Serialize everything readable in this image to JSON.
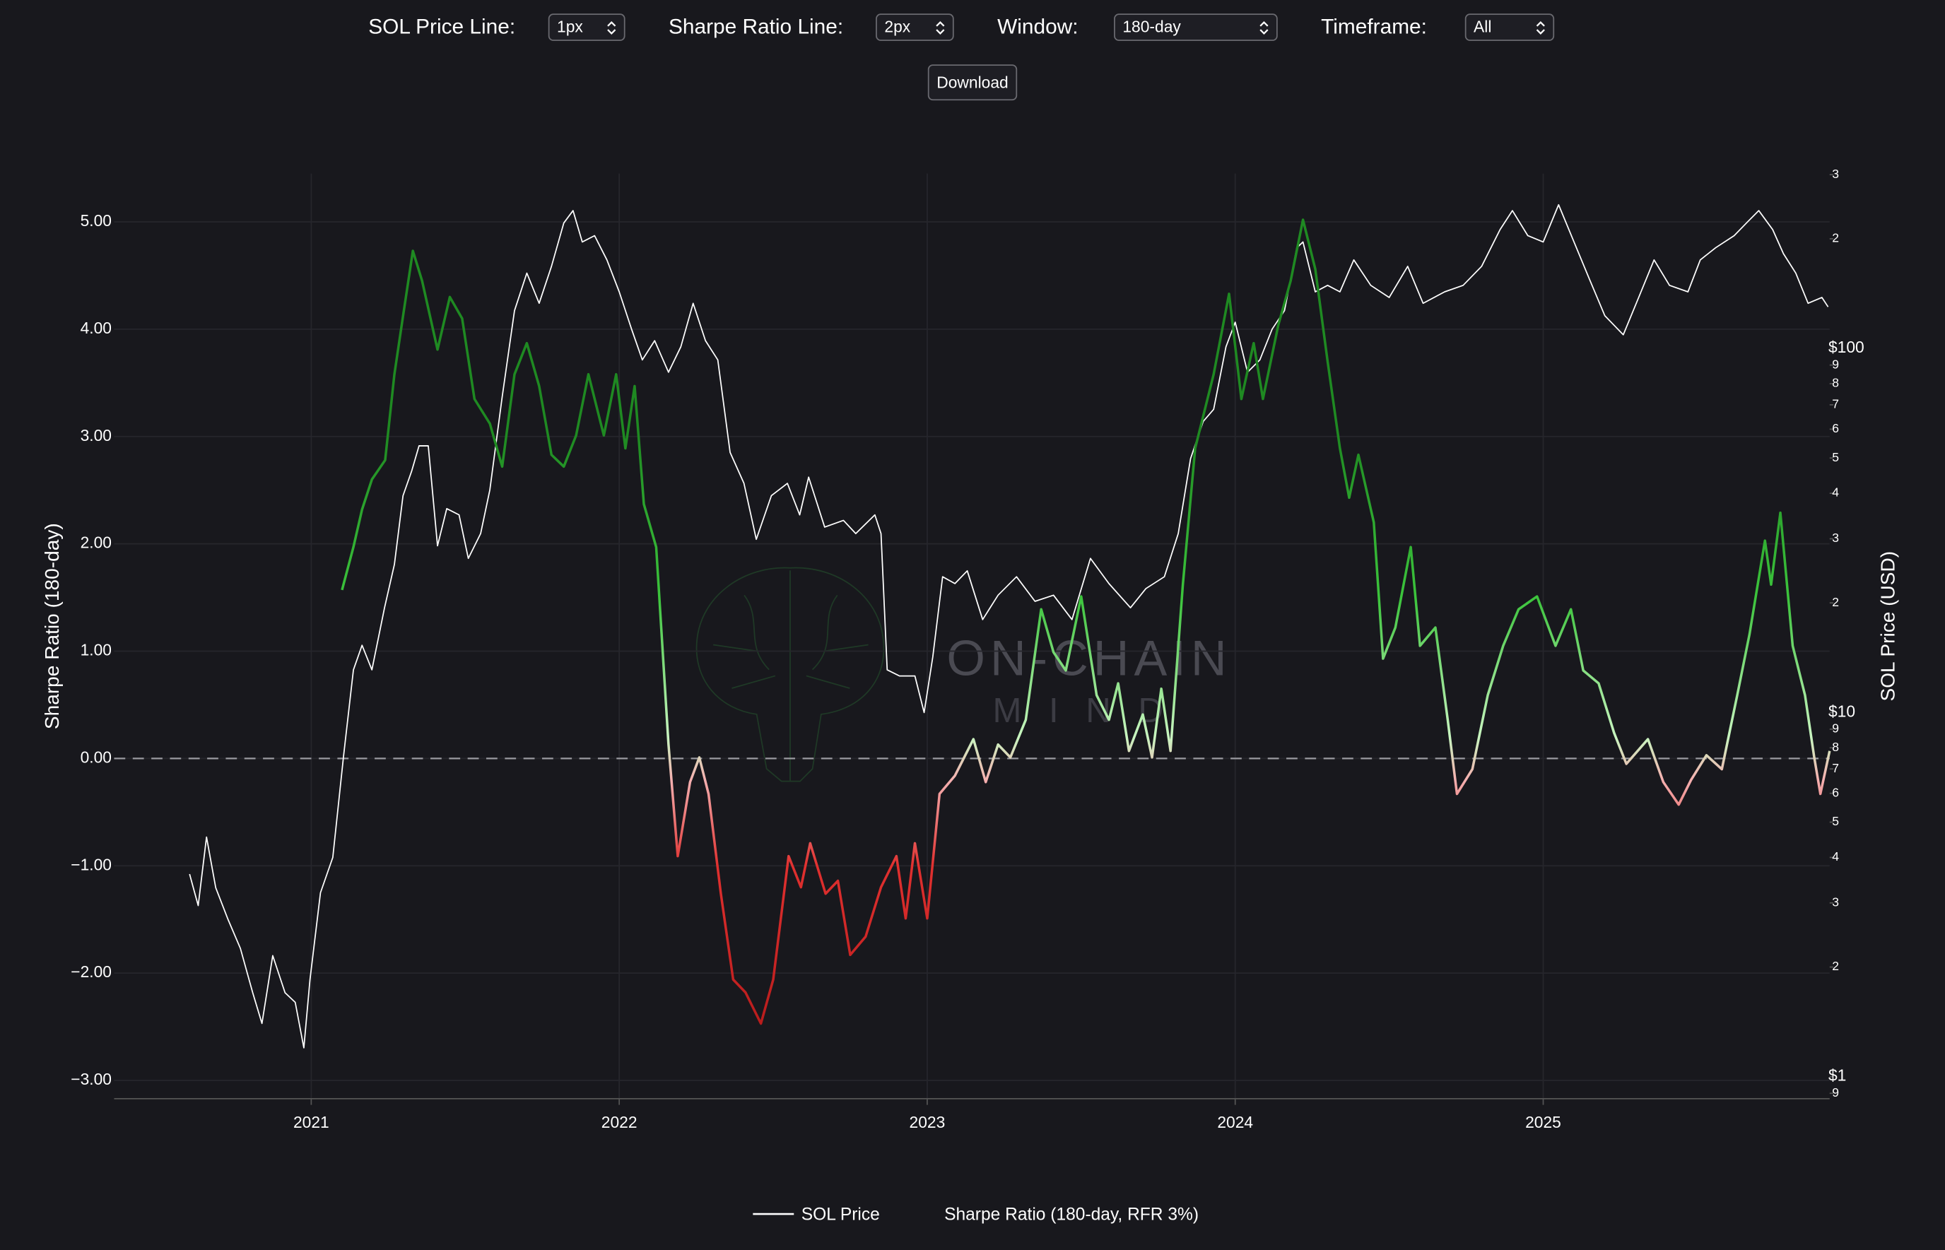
{
  "controls": [
    {
      "label": "SOL Price Line:",
      "value": "1px"
    },
    {
      "label": "Sharpe Ratio Line:",
      "value": "2px"
    },
    {
      "label": "Window:",
      "value": "180-day"
    },
    {
      "label": "Timeframe:",
      "value": "All"
    }
  ],
  "button": "Download",
  "chart_data": {
    "type": "line",
    "watermark": [
      "ON-CHAIN",
      "MIND"
    ],
    "ylabel": "Sharpe Ratio (180-day)",
    "y2label": "SOL Price (USD)",
    "xlim": [
      2020.36,
      2025.93
    ],
    "xticks": [
      2021,
      2022,
      2023,
      2024,
      2025
    ],
    "ylim": [
      -3.17,
      5.45
    ],
    "yticks": [
      {
        "value": -3,
        "label": "−3.00"
      },
      {
        "value": -2,
        "label": "−2.00"
      },
      {
        "value": -1,
        "label": "−1.00"
      },
      {
        "value": 0,
        "label": "0.00"
      },
      {
        "value": 1,
        "label": "1.00"
      },
      {
        "value": 2,
        "label": "2.00"
      },
      {
        "value": 3,
        "label": "3.00"
      },
      {
        "value": 4,
        "label": "4.00"
      },
      {
        "value": 5,
        "label": "5.00"
      }
    ],
    "y2lim": [
      0.87,
      302
    ],
    "y2log": true,
    "y2ticks": [
      {
        "value": 300,
        "label": "3"
      },
      {
        "value": 200,
        "label": "2"
      },
      {
        "value": 100,
        "label": "$100"
      },
      {
        "value": 90,
        "label": "9"
      },
      {
        "value": 80,
        "label": "8"
      },
      {
        "value": 70,
        "label": "7"
      },
      {
        "value": 60,
        "label": "6"
      },
      {
        "value": 50,
        "label": "5"
      },
      {
        "value": 40,
        "label": "4"
      },
      {
        "value": 30,
        "label": "3"
      },
      {
        "value": 20,
        "label": "2"
      },
      {
        "value": 10,
        "label": "$10"
      },
      9,
      8,
      7,
      6,
      5,
      4,
      3,
      2,
      {
        "value": 1,
        "label": "$1"
      },
      {
        "value": 0.9,
        "label": "9"
      }
    ],
    "grid": true,
    "hline": 0,
    "legend": "bottom",
    "series": [
      {
        "name": "SOL Price",
        "color": "#ffffff",
        "axis": "y2",
        "x": [
          2020.605,
          2020.633,
          2020.66,
          2020.69,
          2020.73,
          2020.77,
          2020.81,
          2020.84,
          2020.875,
          2020.915,
          2020.948,
          2020.976,
          2020.996,
          2021.03,
          2021.07,
          2021.105,
          2021.137,
          2021.165,
          2021.197,
          2021.238,
          2021.27,
          2021.298,
          2021.326,
          2021.35,
          2021.38,
          2021.41,
          2021.44,
          2021.48,
          2021.51,
          2021.55,
          2021.58,
          2021.62,
          2021.66,
          2021.7,
          2021.74,
          2021.78,
          2021.82,
          2021.85,
          2021.88,
          2021.92,
          2021.96,
          2022.0,
          2022.04,
          2022.075,
          2022.115,
          2022.16,
          2022.2,
          2022.24,
          2022.28,
          2022.32,
          2022.36,
          2022.405,
          2022.445,
          2022.494,
          2022.546,
          2022.586,
          2022.615,
          2022.667,
          2022.728,
          2022.768,
          2022.83,
          2022.85,
          2022.87,
          2022.91,
          2022.96,
          2022.99,
          2023.018,
          2023.05,
          2023.09,
          2023.13,
          2023.18,
          2023.23,
          2023.29,
          2023.35,
          2023.41,
          2023.47,
          2023.53,
          2023.59,
          2023.66,
          2023.71,
          2023.77,
          2023.815,
          2023.855,
          2023.896,
          2023.93,
          2023.97,
          2024.0,
          2024.04,
          2024.08,
          2024.12,
          2024.16,
          2024.2,
          2024.22,
          2024.26,
          2024.3,
          2024.34,
          2024.385,
          2024.44,
          2024.5,
          2024.56,
          2024.61,
          2024.68,
          2024.74,
          2024.8,
          2024.86,
          2024.9,
          2024.95,
          2025.0,
          2025.05,
          2025.1,
          2025.15,
          2025.2,
          2025.26,
          2025.31,
          2025.36,
          2025.41,
          2025.47,
          2025.51,
          2025.56,
          2025.62,
          2025.66,
          2025.7,
          2025.745,
          2025.78,
          2025.82,
          2025.86,
          2025.905,
          2025.925
        ],
        "values": [
          3.6,
          2.95,
          4.55,
          3.3,
          2.7,
          2.25,
          1.7,
          1.4,
          2.15,
          1.7,
          1.6,
          1.2,
          1.85,
          3.2,
          4.0,
          7.6,
          13.1,
          15.3,
          13.1,
          19.4,
          25.5,
          39.4,
          46,
          54,
          54,
          28.7,
          36.3,
          34.9,
          26.5,
          31,
          40.9,
          73.6,
          127,
          161,
          133,
          168,
          221,
          239,
          196,
          204,
          175,
          143,
          113,
          93,
          105,
          86,
          101,
          133,
          105,
          93,
          51.8,
          42.6,
          29.9,
          39.4,
          42.6,
          34.9,
          44.3,
          32.3,
          33.7,
          31,
          34.9,
          31,
          13.1,
          12.6,
          12.6,
          10,
          14.2,
          23.6,
          22.6,
          24.5,
          18,
          21,
          23.6,
          20.2,
          21,
          18,
          26.5,
          22.6,
          19.4,
          21.9,
          23.6,
          31,
          49.8,
          63,
          68,
          101,
          118,
          86,
          93,
          113,
          127,
          189,
          196,
          143,
          149,
          143,
          175,
          149,
          138,
          168,
          133,
          143,
          149,
          168,
          212,
          239,
          204,
          196,
          248,
          196,
          155,
          123,
          109,
          138,
          175,
          149,
          143,
          175,
          189,
          204,
          221,
          239,
          212,
          182,
          161,
          133,
          138,
          130
        ]
      },
      {
        "name": "Sharpe Ratio (180-day, RFR 3%)",
        "axis": "y",
        "color_stops": [
          {
            "value": 3,
            "color": "#1f8a22"
          },
          {
            "value": 1.5,
            "color": "#3cc43c"
          },
          {
            "value": 0.2,
            "color": "#c8f5c0"
          },
          {
            "value": -0.2,
            "color": "#f5b0b0"
          },
          {
            "value": -1,
            "color": "#e0302f"
          },
          {
            "value": -2.5,
            "color": "#b81c1c"
          }
        ],
        "x": [
          2021.1,
          2021.137,
          2021.165,
          2021.197,
          2021.24,
          2021.27,
          2021.3,
          2021.33,
          2021.36,
          2021.41,
          2021.45,
          2021.49,
          2021.53,
          2021.58,
          2021.62,
          2021.66,
          2021.7,
          2021.74,
          2021.78,
          2021.82,
          2021.86,
          2021.9,
          2021.95,
          2021.99,
          2022.02,
          2022.05,
          2022.08,
          2022.12,
          2022.16,
          2022.19,
          2022.23,
          2022.26,
          2022.29,
          2022.33,
          2022.37,
          2022.41,
          2022.46,
          2022.5,
          2022.55,
          2022.59,
          2022.62,
          2022.67,
          2022.71,
          2022.75,
          2022.8,
          2022.85,
          2022.9,
          2022.93,
          2022.96,
          2023.0,
          2023.04,
          2023.09,
          2023.15,
          2023.19,
          2023.23,
          2023.27,
          2023.32,
          2023.37,
          2023.41,
          2023.45,
          2023.5,
          2023.55,
          2023.59,
          2023.62,
          2023.655,
          2023.7,
          2023.73,
          2023.76,
          2023.79,
          2023.83,
          2023.87,
          2023.93,
          2023.98,
          2024.02,
          2024.06,
          2024.09,
          2024.14,
          2024.18,
          2024.22,
          2024.26,
          2024.3,
          2024.34,
          2024.37,
          2024.4,
          2024.45,
          2024.48,
          2024.52,
          2024.57,
          2024.6,
          2024.65,
          2024.69,
          2024.72,
          2024.77,
          2024.82,
          2024.87,
          2024.92,
          2024.98,
          2025.01,
          2025.04,
          2025.09,
          2025.13,
          2025.18,
          2025.23,
          2025.27,
          2025.34,
          2025.39,
          2025.44,
          2025.48,
          2025.53,
          2025.58,
          2025.63,
          2025.67,
          2025.72,
          2025.74,
          2025.77,
          2025.81,
          2025.85,
          2025.88,
          2025.9,
          2025.93
        ],
        "values": [
          1.57,
          1.97,
          2.32,
          2.6,
          2.78,
          3.58,
          4.16,
          4.73,
          4.45,
          3.81,
          4.3,
          4.1,
          3.35,
          3.12,
          2.72,
          3.58,
          3.87,
          3.47,
          2.83,
          2.72,
          3.01,
          3.58,
          3.01,
          3.58,
          2.89,
          3.47,
          2.37,
          1.97,
          0.13,
          -0.91,
          -0.22,
          0.01,
          -0.33,
          -1.26,
          -2.06,
          -2.18,
          -2.47,
          -2.06,
          -0.91,
          -1.2,
          -0.79,
          -1.26,
          -1.14,
          -1.83,
          -1.66,
          -1.2,
          -0.91,
          -1.49,
          -0.79,
          -1.49,
          -0.33,
          -0.16,
          0.18,
          -0.22,
          0.13,
          0.01,
          0.36,
          1.39,
          0.99,
          0.82,
          1.51,
          0.59,
          0.36,
          0.7,
          0.07,
          0.41,
          0.01,
          0.65,
          0.07,
          1.62,
          2.89,
          3.58,
          4.33,
          3.35,
          3.87,
          3.35,
          4.04,
          4.45,
          5.02,
          4.56,
          3.7,
          2.89,
          2.43,
          2.83,
          2.2,
          0.93,
          1.22,
          1.97,
          1.05,
          1.22,
          0.36,
          -0.33,
          -0.1,
          0.59,
          1.05,
          1.39,
          1.51,
          1.28,
          1.05,
          1.39,
          0.82,
          0.7,
          0.24,
          -0.05,
          0.18,
          -0.22,
          -0.43,
          -0.2,
          0.03,
          -0.1,
          0.59,
          1.16,
          2.03,
          1.62,
          2.29,
          1.05,
          0.59,
          0.01,
          -0.33,
          0.07
        ]
      }
    ]
  }
}
